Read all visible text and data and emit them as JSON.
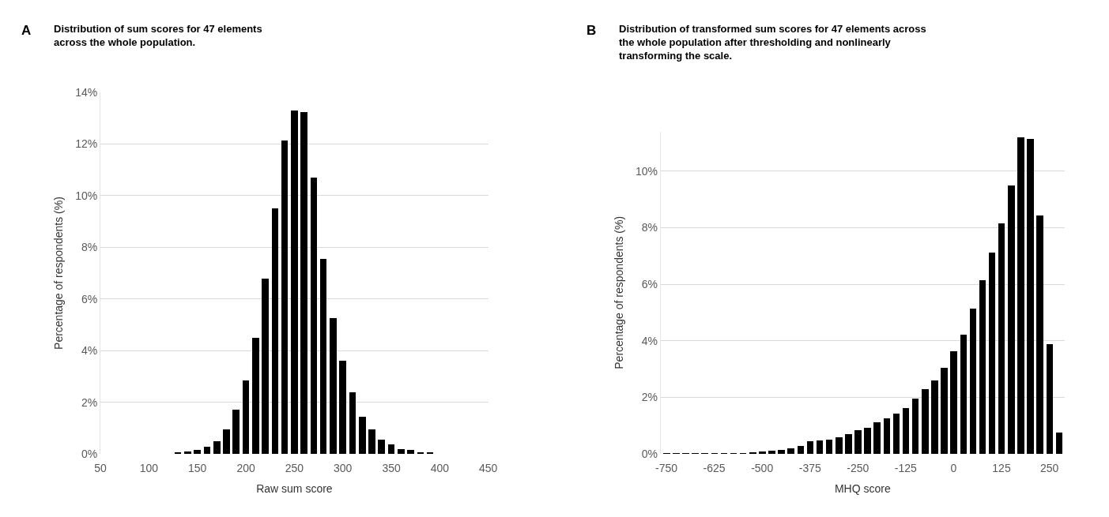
{
  "chart_data": [
    {
      "type": "bar",
      "title": "Distribution of sum scores for 47 elements across the whole population.",
      "annotations": [
        "A"
      ],
      "xlabel": "Raw sum score",
      "ylabel": "Percentage of respondents (%)",
      "color": "#000000",
      "grid": "y",
      "x": [
        130,
        140,
        150,
        160,
        170,
        180,
        190,
        200,
        210,
        220,
        230,
        240,
        250,
        260,
        270,
        280,
        290,
        300,
        310,
        320,
        330,
        340,
        350,
        360,
        370,
        380,
        390
      ],
      "values": [
        0.05,
        0.08,
        0.15,
        0.28,
        0.5,
        0.95,
        1.7,
        2.85,
        4.5,
        6.8,
        9.5,
        12.15,
        13.3,
        13.25,
        10.7,
        7.55,
        5.25,
        3.6,
        2.4,
        1.45,
        0.95,
        0.55,
        0.38,
        0.18,
        0.14,
        0.06,
        0.05
      ],
      "xlim": [
        50,
        450
      ],
      "xticks": [
        50,
        100,
        150,
        200,
        250,
        300,
        350,
        400,
        450
      ],
      "ylim": [
        0,
        14
      ],
      "yticks": [
        {
          "value": 0,
          "label": "0%"
        },
        {
          "value": 2,
          "label": "2%"
        },
        {
          "value": 4,
          "label": "4%"
        },
        {
          "value": 6,
          "label": "6%"
        },
        {
          "value": 8,
          "label": "8%"
        },
        {
          "value": 10,
          "label": "10%"
        },
        {
          "value": 12,
          "label": "12%"
        },
        {
          "value": 14,
          "label": "14%"
        }
      ]
    },
    {
      "type": "bar",
      "title": "Distribution of transformed sum scores for 47 elements across the whole population after thresholding and nonlinearly transforming the scale.",
      "annotations": [
        "B"
      ],
      "xlabel": "MHQ score",
      "ylabel": "Percentage of respondents (%)",
      "color": "#000000",
      "grid": "y",
      "x": [
        -750,
        -725,
        -700,
        -675,
        -650,
        -625,
        -600,
        -575,
        -550,
        -525,
        -500,
        -475,
        -450,
        -425,
        -400,
        -375,
        -350,
        -325,
        -300,
        -275,
        -250,
        -225,
        -200,
        -175,
        -150,
        -125,
        -100,
        -75,
        -50,
        -25,
        0,
        25,
        50,
        75,
        100,
        125,
        150,
        175,
        200,
        225,
        250,
        275
      ],
      "values": [
        0.02,
        0.02,
        0.02,
        0.02,
        0.02,
        0.02,
        0.02,
        0.02,
        0.05,
        0.06,
        0.1,
        0.14,
        0.15,
        0.22,
        0.3,
        0.45,
        0.5,
        0.52,
        0.6,
        0.7,
        0.85,
        0.93,
        1.12,
        1.26,
        1.45,
        1.63,
        1.98,
        2.3,
        2.6,
        3.05,
        3.65,
        4.22,
        5.15,
        6.15,
        7.12,
        8.17,
        9.5,
        11.2,
        11.15,
        8.45,
        3.9,
        0.78
      ],
      "xlim": [
        -765,
        290
      ],
      "xticks": [
        -750,
        -625,
        -500,
        -375,
        -250,
        -125,
        0,
        125,
        250
      ],
      "ylim": [
        0,
        11.4
      ],
      "yticks": [
        {
          "value": 0,
          "label": "0%"
        },
        {
          "value": 2,
          "label": "2%"
        },
        {
          "value": 4,
          "label": "4%"
        },
        {
          "value": 6,
          "label": "6%"
        },
        {
          "value": 8,
          "label": "8%"
        },
        {
          "value": 10,
          "label": "10%"
        }
      ]
    }
  ]
}
